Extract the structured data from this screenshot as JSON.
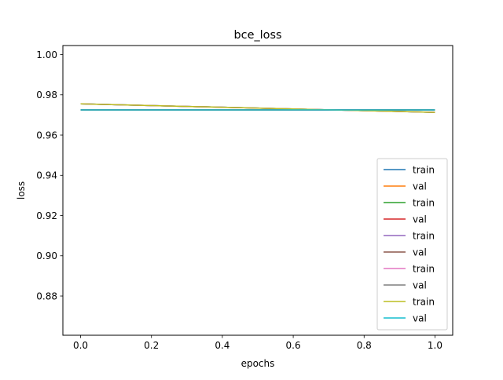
{
  "chart_data": {
    "type": "line",
    "title": "bce_loss",
    "xlabel": "epochs",
    "ylabel": "loss",
    "xlim": [
      -0.05,
      1.05
    ],
    "ylim": [
      0.8605,
      1.0045
    ],
    "xticks": [
      0.0,
      0.2,
      0.4,
      0.6,
      0.8,
      1.0
    ],
    "xtick_labels": [
      "0.0",
      "0.2",
      "0.4",
      "0.6",
      "0.8",
      "1.0"
    ],
    "yticks": [
      0.88,
      0.9,
      0.92,
      0.94,
      0.96,
      0.98,
      1.0
    ],
    "ytick_labels": [
      "0.88",
      "0.90",
      "0.92",
      "0.94",
      "0.96",
      "0.98",
      "1.00"
    ],
    "grid": false,
    "legend_position": "lower right",
    "series": [
      {
        "name": "train",
        "color": "#1f77b4",
        "x": [
          0,
          1
        ],
        "y": [
          0.9755,
          0.9713
        ]
      },
      {
        "name": "val",
        "color": "#ff7f0e",
        "x": [
          0,
          1
        ],
        "y": [
          0.9725,
          0.9725
        ]
      },
      {
        "name": "train",
        "color": "#2ca02c",
        "x": [
          0,
          1
        ],
        "y": [
          0.9755,
          0.9713
        ]
      },
      {
        "name": "val",
        "color": "#d62728",
        "x": [
          0,
          1
        ],
        "y": [
          0.9725,
          0.9725
        ]
      },
      {
        "name": "train",
        "color": "#9467bd",
        "x": [
          0,
          1
        ],
        "y": [
          0.9755,
          0.9713
        ]
      },
      {
        "name": "val",
        "color": "#8c564b",
        "x": [
          0,
          1
        ],
        "y": [
          0.9725,
          0.9725
        ]
      },
      {
        "name": "train",
        "color": "#e377c2",
        "x": [
          0,
          1
        ],
        "y": [
          0.9755,
          0.9713
        ]
      },
      {
        "name": "val",
        "color": "#7f7f7f",
        "x": [
          0,
          1
        ],
        "y": [
          0.9725,
          0.9725
        ]
      },
      {
        "name": "train",
        "color": "#bcbd22",
        "x": [
          0,
          1
        ],
        "y": [
          0.9755,
          0.9713
        ]
      },
      {
        "name": "val",
        "color": "#17becf",
        "x": [
          0,
          1
        ],
        "y": [
          0.9725,
          0.9725
        ]
      }
    ]
  }
}
